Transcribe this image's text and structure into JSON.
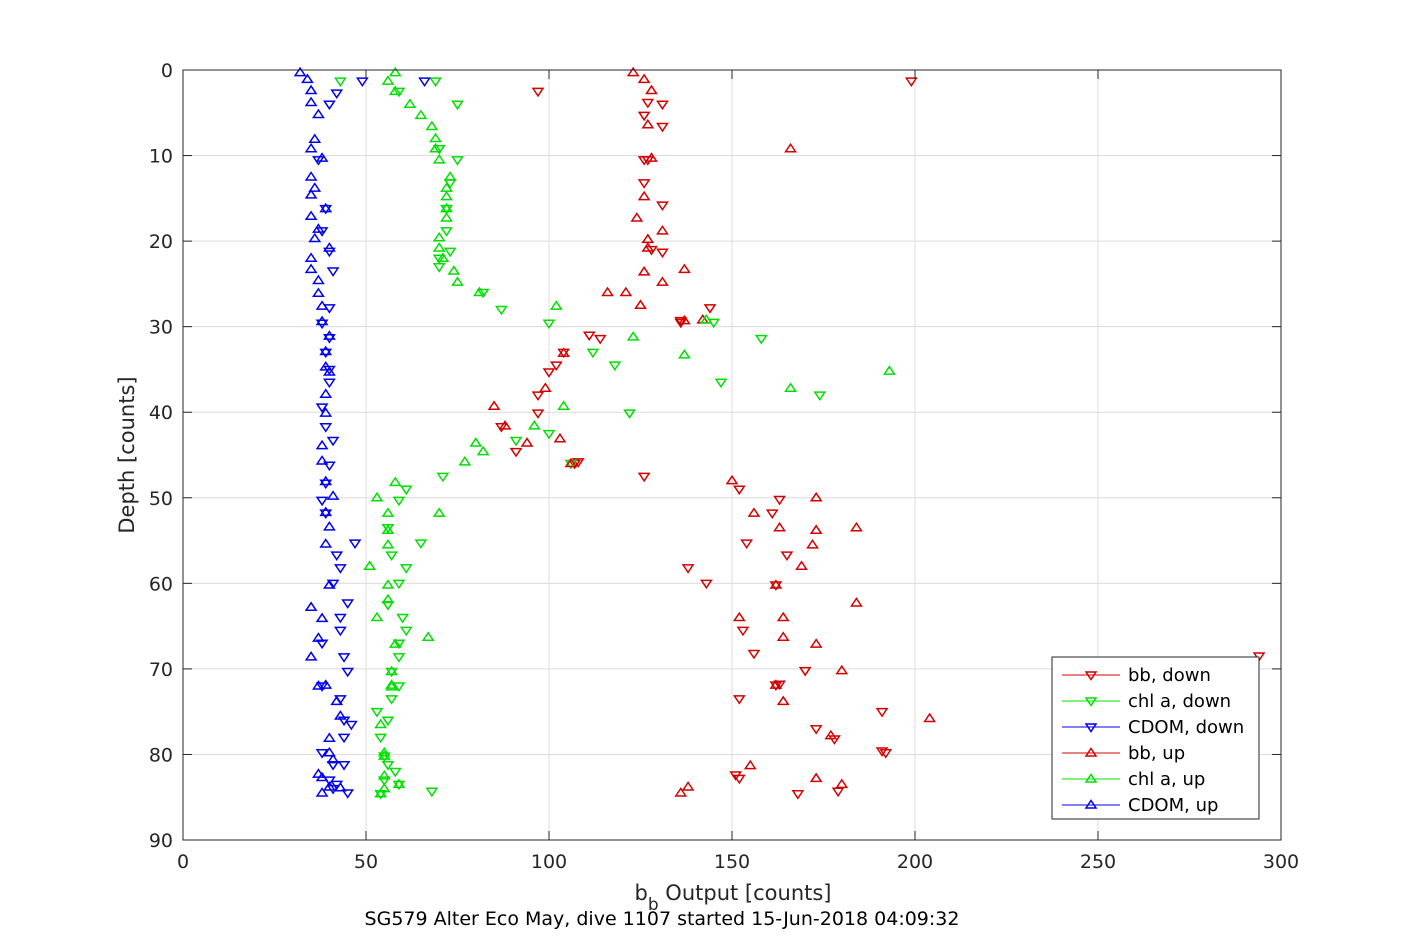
{
  "chart_data": {
    "type": "scatter",
    "xlabel_main": "b",
    "xlabel_sub": "b",
    "xlabel_rest": " Output [counts]",
    "ylabel": "Depth [counts]",
    "caption": "SG579 Alter Eco May, dive 1107 started 15-Jun-2018 04:09:32",
    "xlim": [
      0,
      300
    ],
    "ylim": [
      0,
      90
    ],
    "y_reversed": true,
    "xticks": [
      0,
      50,
      100,
      150,
      200,
      250,
      300
    ],
    "yticks": [
      0,
      10,
      20,
      30,
      40,
      50,
      60,
      70,
      80,
      90
    ],
    "grid": true,
    "legend_position": "bottom-right",
    "series": [
      {
        "name": "bb, down",
        "color": "#d40000",
        "marker": "triangle-down",
        "points": [
          [
            199,
            1.3
          ],
          [
            97,
            2.5
          ],
          [
            127,
            3.8
          ],
          [
            131,
            4
          ],
          [
            126,
            5.3
          ],
          [
            131,
            6.6
          ],
          [
            127,
            10.5
          ],
          [
            126,
            13.2
          ],
          [
            131,
            15.8
          ],
          [
            128,
            21
          ],
          [
            131,
            21.3
          ],
          [
            136,
            29.5
          ],
          [
            144,
            27.8
          ],
          [
            111,
            31
          ],
          [
            114,
            31.4
          ],
          [
            104,
            33
          ],
          [
            102,
            34.5
          ],
          [
            100,
            35.3
          ],
          [
            97,
            38
          ],
          [
            97,
            40.1
          ],
          [
            87,
            41.7
          ],
          [
            91,
            44.6
          ],
          [
            107,
            46
          ],
          [
            108,
            45.8
          ],
          [
            126,
            47.5
          ],
          [
            152,
            49
          ],
          [
            163,
            50.2
          ],
          [
            161,
            51.8
          ],
          [
            154,
            55.3
          ],
          [
            165,
            56.7
          ],
          [
            138,
            58.2
          ],
          [
            143,
            60
          ],
          [
            162,
            60.2
          ],
          [
            153,
            65.5
          ],
          [
            156,
            68.2
          ],
          [
            170,
            70.2
          ],
          [
            162,
            71.9
          ],
          [
            152,
            73.5
          ],
          [
            173,
            77
          ],
          [
            178,
            78.2
          ],
          [
            191,
            75
          ],
          [
            192,
            79.8
          ],
          [
            152,
            82.8
          ],
          [
            151,
            82.4
          ],
          [
            179,
            84.3
          ],
          [
            168,
            84.6
          ],
          [
            294,
            68.5
          ],
          [
            126,
            10.5
          ],
          [
            163,
            71.8
          ],
          [
            136,
            29.3
          ],
          [
            191,
            79.6
          ]
        ]
      },
      {
        "name": "chl a, down",
        "color": "#00e000",
        "marker": "triangle-down",
        "points": [
          [
            69,
            1.3
          ],
          [
            43,
            1.3
          ],
          [
            59,
            2.5
          ],
          [
            75,
            4
          ],
          [
            70,
            9.2
          ],
          [
            75,
            10.5
          ],
          [
            73,
            13.2
          ],
          [
            72,
            16.2
          ],
          [
            72,
            18.8
          ],
          [
            73,
            21.2
          ],
          [
            70,
            22
          ],
          [
            70,
            23
          ],
          [
            82,
            26
          ],
          [
            87,
            28
          ],
          [
            100,
            29.6
          ],
          [
            145,
            29.5
          ],
          [
            158,
            31.4
          ],
          [
            112,
            33
          ],
          [
            118,
            34.5
          ],
          [
            147,
            36.5
          ],
          [
            174,
            38
          ],
          [
            122,
            40.1
          ],
          [
            91,
            43.3
          ],
          [
            100,
            42.5
          ],
          [
            106,
            46
          ],
          [
            71,
            47.5
          ],
          [
            61,
            49
          ],
          [
            59,
            50.3
          ],
          [
            56,
            53.5
          ],
          [
            57,
            56.7
          ],
          [
            65,
            55.3
          ],
          [
            61,
            58.2
          ],
          [
            59,
            60
          ],
          [
            56,
            62.5
          ],
          [
            60,
            64
          ],
          [
            61,
            65.5
          ],
          [
            59,
            67
          ],
          [
            59,
            68.6
          ],
          [
            57,
            70.3
          ],
          [
            59,
            72
          ],
          [
            57,
            73.5
          ],
          [
            53,
            75
          ],
          [
            56,
            76
          ],
          [
            54,
            78
          ],
          [
            55,
            80.2
          ],
          [
            56,
            81.2
          ],
          [
            58,
            82
          ],
          [
            55,
            83
          ],
          [
            59,
            83.5
          ],
          [
            54,
            84.6
          ],
          [
            68,
            84.3
          ]
        ]
      },
      {
        "name": "CDOM, down",
        "color": "#0000ee",
        "marker": "triangle-down",
        "points": [
          [
            49,
            1.3
          ],
          [
            66,
            1.3
          ],
          [
            42,
            2.7
          ],
          [
            40,
            4
          ],
          [
            37,
            10.5
          ],
          [
            39,
            16.2
          ],
          [
            38,
            18.8
          ],
          [
            40,
            21.2
          ],
          [
            41,
            23.5
          ],
          [
            40,
            27.8
          ],
          [
            38,
            29.6
          ],
          [
            40,
            31.3
          ],
          [
            39,
            33
          ],
          [
            40,
            35
          ],
          [
            40,
            36.5
          ],
          [
            38,
            39.4
          ],
          [
            39,
            41.7
          ],
          [
            41,
            43.3
          ],
          [
            40,
            46.2
          ],
          [
            39,
            48.3
          ],
          [
            38,
            50.3
          ],
          [
            39,
            51.8
          ],
          [
            47,
            55.3
          ],
          [
            42,
            56.7
          ],
          [
            43,
            58.2
          ],
          [
            41,
            60
          ],
          [
            45,
            62.3
          ],
          [
            43,
            64
          ],
          [
            43,
            65.5
          ],
          [
            38,
            67
          ],
          [
            44,
            68.6
          ],
          [
            45,
            70.3
          ],
          [
            38,
            72
          ],
          [
            43,
            73.5
          ],
          [
            44,
            76
          ],
          [
            46,
            76.5
          ],
          [
            44,
            78
          ],
          [
            38,
            79.8
          ],
          [
            41,
            81.2
          ],
          [
            44,
            81.2
          ],
          [
            42,
            83.5
          ],
          [
            40,
            83
          ],
          [
            41,
            84
          ],
          [
            45,
            84.5
          ]
        ]
      },
      {
        "name": "bb, up",
        "color": "#d40000",
        "marker": "triangle-up",
        "points": [
          [
            123,
            0.3
          ],
          [
            126,
            1.1
          ],
          [
            128,
            2.4
          ],
          [
            127,
            6.4
          ],
          [
            166,
            9.2
          ],
          [
            128,
            10.3
          ],
          [
            126,
            14.8
          ],
          [
            124,
            17.3
          ],
          [
            131,
            18.8
          ],
          [
            127,
            19.8
          ],
          [
            127,
            20.8
          ],
          [
            137,
            23.3
          ],
          [
            126,
            23.6
          ],
          [
            131,
            24.8
          ],
          [
            116,
            26
          ],
          [
            121,
            26
          ],
          [
            125,
            27.5
          ],
          [
            137,
            29.3
          ],
          [
            142,
            29.2
          ],
          [
            104,
            33.1
          ],
          [
            99,
            37.2
          ],
          [
            85,
            39.3
          ],
          [
            88,
            41.6
          ],
          [
            103,
            43.1
          ],
          [
            94,
            43.6
          ],
          [
            106,
            46
          ],
          [
            150,
            48
          ],
          [
            173,
            50
          ],
          [
            156,
            51.8
          ],
          [
            163,
            53.5
          ],
          [
            173,
            53.8
          ],
          [
            184,
            53.5
          ],
          [
            172,
            55.5
          ],
          [
            169,
            58
          ],
          [
            162,
            60.2
          ],
          [
            184,
            62.3
          ],
          [
            164,
            64
          ],
          [
            152,
            64
          ],
          [
            164,
            66.3
          ],
          [
            173,
            67.1
          ],
          [
            180,
            70.2
          ],
          [
            162,
            71.9
          ],
          [
            164,
            73.8
          ],
          [
            204,
            75.8
          ],
          [
            177,
            77.8
          ],
          [
            155,
            81.3
          ],
          [
            173,
            82.8
          ],
          [
            180,
            83.5
          ],
          [
            138,
            83.8
          ],
          [
            136,
            84.5
          ]
        ]
      },
      {
        "name": "chl a, up",
        "color": "#00e000",
        "marker": "triangle-up",
        "points": [
          [
            58,
            0.3
          ],
          [
            56,
            1.3
          ],
          [
            58,
            2.5
          ],
          [
            62,
            4
          ],
          [
            65,
            5.3
          ],
          [
            68,
            6.6
          ],
          [
            69,
            8
          ],
          [
            69,
            9.2
          ],
          [
            70,
            10.5
          ],
          [
            73,
            12.5
          ],
          [
            72,
            13.8
          ],
          [
            72,
            14.8
          ],
          [
            72,
            16.2
          ],
          [
            72,
            17.3
          ],
          [
            70,
            19.6
          ],
          [
            70,
            20.8
          ],
          [
            71,
            22
          ],
          [
            74,
            23.5
          ],
          [
            75,
            24.8
          ],
          [
            81,
            26
          ],
          [
            102,
            27.6
          ],
          [
            143,
            29.2
          ],
          [
            123,
            31.2
          ],
          [
            137,
            33.3
          ],
          [
            193,
            35.2
          ],
          [
            166,
            37.2
          ],
          [
            104,
            39.3
          ],
          [
            96,
            41.6
          ],
          [
            80,
            43.6
          ],
          [
            82,
            44.6
          ],
          [
            77,
            45.8
          ],
          [
            58,
            48.2
          ],
          [
            53,
            50
          ],
          [
            70,
            51.8
          ],
          [
            56,
            51.8
          ],
          [
            56,
            53.8
          ],
          [
            56,
            55.5
          ],
          [
            51,
            58
          ],
          [
            56,
            60.2
          ],
          [
            56,
            61.9
          ],
          [
            53,
            64
          ],
          [
            67,
            66.3
          ],
          [
            58,
            67.1
          ],
          [
            57,
            70.3
          ],
          [
            57,
            71.9
          ],
          [
            57,
            72.1
          ],
          [
            54,
            76.5
          ],
          [
            55,
            79.8
          ],
          [
            55,
            80.2
          ],
          [
            55,
            82.5
          ],
          [
            54,
            84.6
          ],
          [
            59,
            83.5
          ],
          [
            55,
            84
          ]
        ]
      },
      {
        "name": "CDOM, up",
        "color": "#0000ee",
        "marker": "triangle-up",
        "points": [
          [
            32,
            0.3
          ],
          [
            34,
            1.1
          ],
          [
            35,
            2.4
          ],
          [
            35,
            3.8
          ],
          [
            37,
            5.2
          ],
          [
            36,
            8.1
          ],
          [
            35,
            9.2
          ],
          [
            38,
            10.3
          ],
          [
            35,
            12.5
          ],
          [
            36,
            13.8
          ],
          [
            35,
            14.6
          ],
          [
            35,
            17.1
          ],
          [
            39,
            16.2
          ],
          [
            37,
            18.6
          ],
          [
            36,
            19.7
          ],
          [
            40,
            20.8
          ],
          [
            35,
            22
          ],
          [
            35,
            23.3
          ],
          [
            37,
            24.6
          ],
          [
            37,
            26.1
          ],
          [
            38,
            27.6
          ],
          [
            38,
            29.4
          ],
          [
            40,
            31.1
          ],
          [
            39,
            32.9
          ],
          [
            39,
            34.7
          ],
          [
            40,
            35.3
          ],
          [
            39,
            37.9
          ],
          [
            39,
            40.1
          ],
          [
            38,
            43.9
          ],
          [
            38,
            45.7
          ],
          [
            39,
            48.1
          ],
          [
            41,
            49.8
          ],
          [
            39,
            51.7
          ],
          [
            40,
            53.4
          ],
          [
            39,
            55.4
          ],
          [
            40,
            60.2
          ],
          [
            35,
            62.8
          ],
          [
            38,
            64.1
          ],
          [
            37,
            66.4
          ],
          [
            35,
            68.6
          ],
          [
            37,
            72
          ],
          [
            39,
            71.9
          ],
          [
            42,
            73.8
          ],
          [
            43,
            75.5
          ],
          [
            40,
            78.1
          ],
          [
            40,
            79.8
          ],
          [
            41,
            80.6
          ],
          [
            37,
            82.3
          ],
          [
            38,
            82.7
          ],
          [
            40,
            83.8
          ],
          [
            38,
            84.5
          ],
          [
            43,
            83.9
          ]
        ]
      }
    ]
  }
}
